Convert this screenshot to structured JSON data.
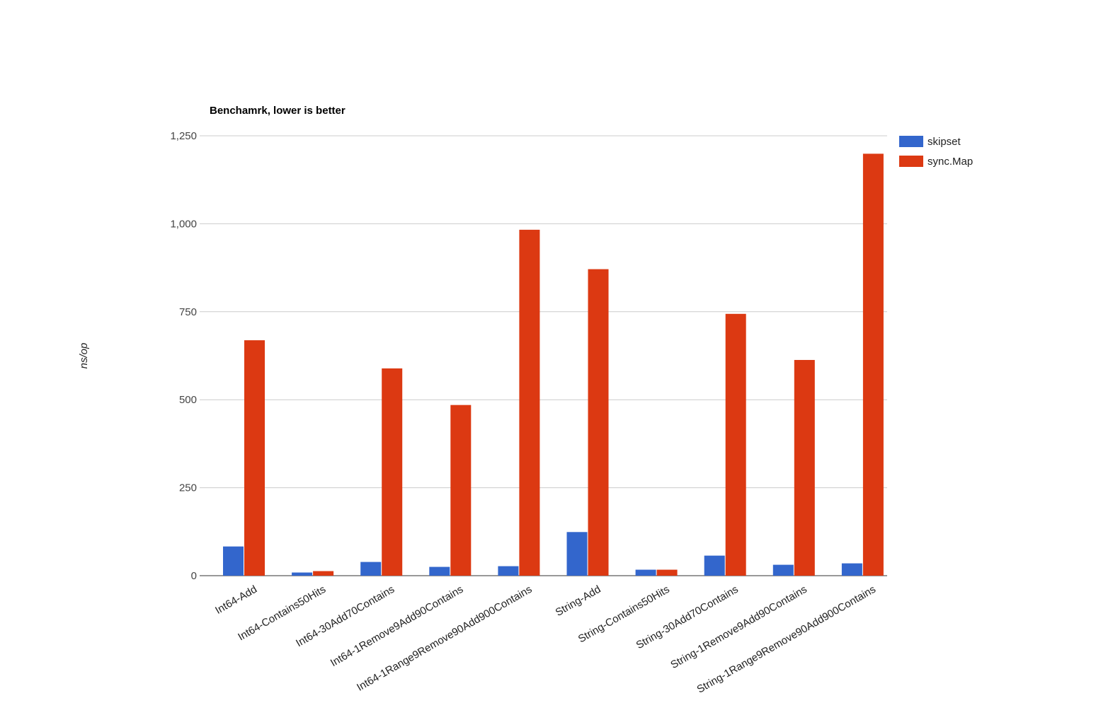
{
  "chart_data": {
    "type": "bar",
    "title": "Benchamrk, lower is better",
    "xlabel": "",
    "ylabel": "ns/op",
    "ylim": [
      0,
      1250
    ],
    "yticks": [
      0,
      250,
      500,
      750,
      1000,
      1250
    ],
    "ytick_labels": [
      "0",
      "250",
      "500",
      "750",
      "1,000",
      "1,250"
    ],
    "grid": true,
    "legend_position": "right",
    "categories": [
      "Int64-Add",
      "Int64-Contains50Hits",
      "Int64-30Add70Contains",
      "Int64-1Remove9Add90Contains",
      "Int64-1Range9Remove90Add900Contains",
      "String-Add",
      "String-Contains50Hits",
      "String-30Add70Contains",
      "String-1Remove9Add90Contains",
      "String-1Range9Remove90Add900Contains"
    ],
    "series": [
      {
        "name": "skipset",
        "color": "#3366cc",
        "values": [
          83,
          9,
          39,
          25,
          27,
          124,
          17,
          57,
          31,
          35
        ]
      },
      {
        "name": "sync.Map",
        "color": "#dc3912",
        "values": [
          669,
          13,
          589,
          485,
          983,
          871,
          17,
          744,
          613,
          1199
        ]
      }
    ]
  }
}
